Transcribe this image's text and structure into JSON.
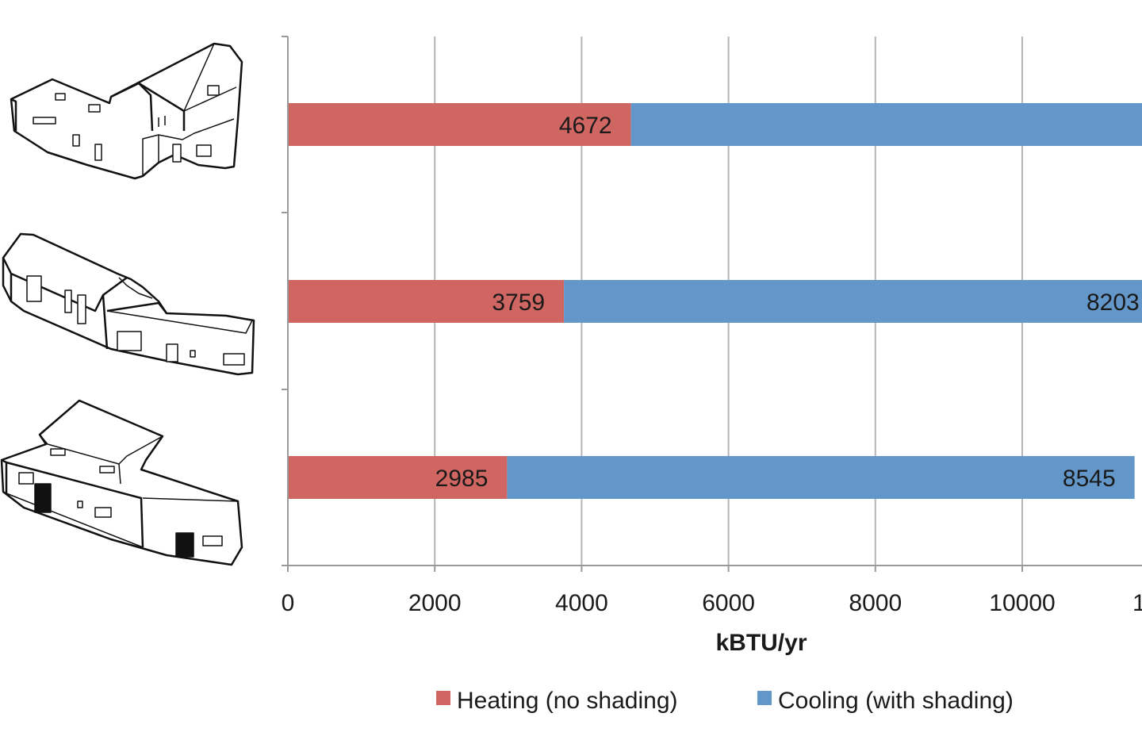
{
  "chart_data": {
    "type": "bar",
    "orientation": "horizontal",
    "stacked": true,
    "title": "",
    "xlabel": "kBTU/yr",
    "ylabel": "",
    "xlim": [
      0,
      12000
    ],
    "x_ticks": [
      "0",
      "2000",
      "4000",
      "6000",
      "8000",
      "10000",
      "1"
    ],
    "categories": [
      "house-variant-1",
      "house-variant-2",
      "house-variant-3"
    ],
    "series": [
      {
        "name": "Heating (no shading)",
        "color": "#d06661",
        "values": [
          4672,
          3759,
          2985
        ]
      },
      {
        "name": "Cooling (with shading)",
        "color": "#6497c9",
        "values": [
          null,
          8203,
          8545
        ]
      }
    ],
    "data_labels": [
      {
        "series": 0,
        "bar": 0,
        "text": "4672"
      },
      {
        "series": 0,
        "bar": 1,
        "text": "3759"
      },
      {
        "series": 0,
        "bar": 2,
        "text": "2985"
      },
      {
        "series": 1,
        "bar": 1,
        "text": "8203"
      },
      {
        "series": 1,
        "bar": 2,
        "text": "8545"
      }
    ],
    "category_icons": [
      "house-sketch-icon",
      "house-sketch-icon",
      "house-sketch-icon"
    ],
    "grid": true,
    "legend_position": "bottom",
    "gridline_color": "#b5b5b5"
  }
}
